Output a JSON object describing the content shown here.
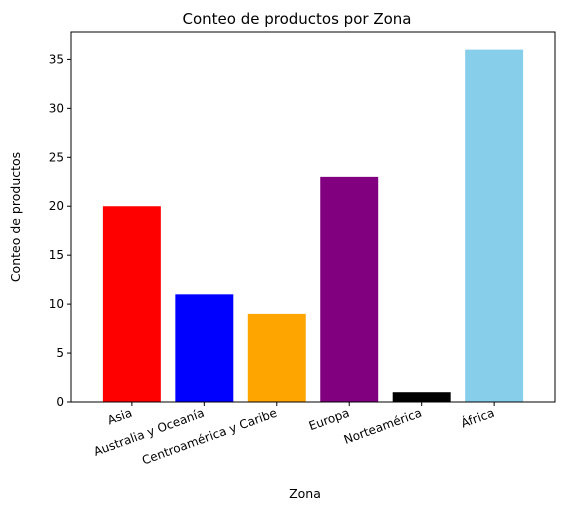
{
  "chart_data": {
    "type": "bar",
    "title": "Conteo de productos por Zona",
    "xlabel": "Zona",
    "ylabel": "Conteo de productos",
    "categories": [
      "Asia",
      "Australia y Oceanía",
      "Centroamérica y Caribe",
      "Europa",
      "Norteamérica",
      "África"
    ],
    "values": [
      20,
      11,
      9,
      23,
      1,
      36
    ],
    "colors": [
      "#ff0000",
      "#0000ff",
      "#ffa500",
      "#800080",
      "#000000",
      "#87ceeb"
    ],
    "ylim": [
      0,
      37.8
    ],
    "yticks": [
      0,
      5,
      10,
      15,
      20,
      25,
      30,
      35
    ],
    "grid": false,
    "legend": "none"
  }
}
